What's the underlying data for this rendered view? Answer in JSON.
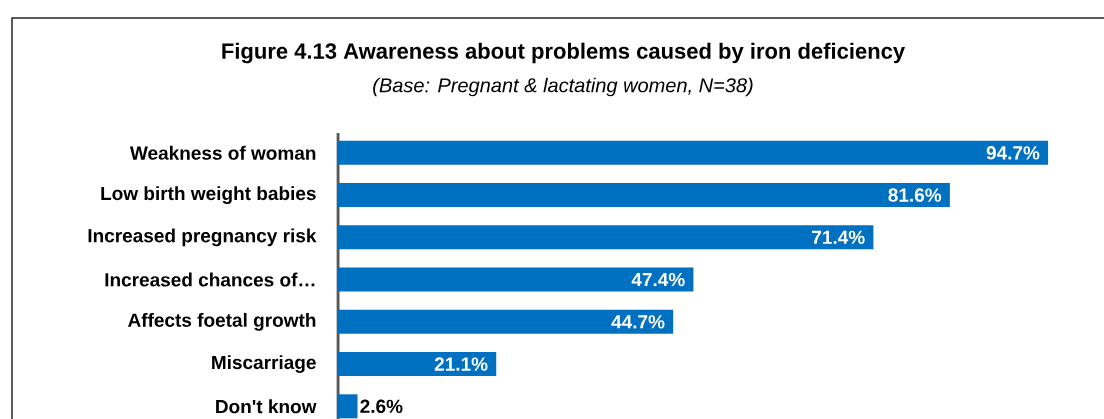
{
  "chart_data": {
    "type": "bar",
    "orientation": "horizontal",
    "title": "Figure 4.13 Awareness about problems caused by iron deficiency",
    "subtitle": "(Base: Pregnant & lactating women, N=38)",
    "categories": [
      "Weakness of woman",
      "Low birth weight babies",
      "Increased pregnancy risk",
      "Increased chances of…",
      "Affects foetal growth",
      "Miscarriage",
      "Don't know"
    ],
    "values": [
      94.7,
      81.6,
      71.4,
      47.4,
      44.7,
      21.1,
      2.6
    ],
    "value_labels": [
      "94.7%",
      "81.6%",
      "71.4%",
      "47.4%",
      "44.7%",
      "21.1%",
      "2.6%"
    ],
    "color": "#0070c0"
  }
}
